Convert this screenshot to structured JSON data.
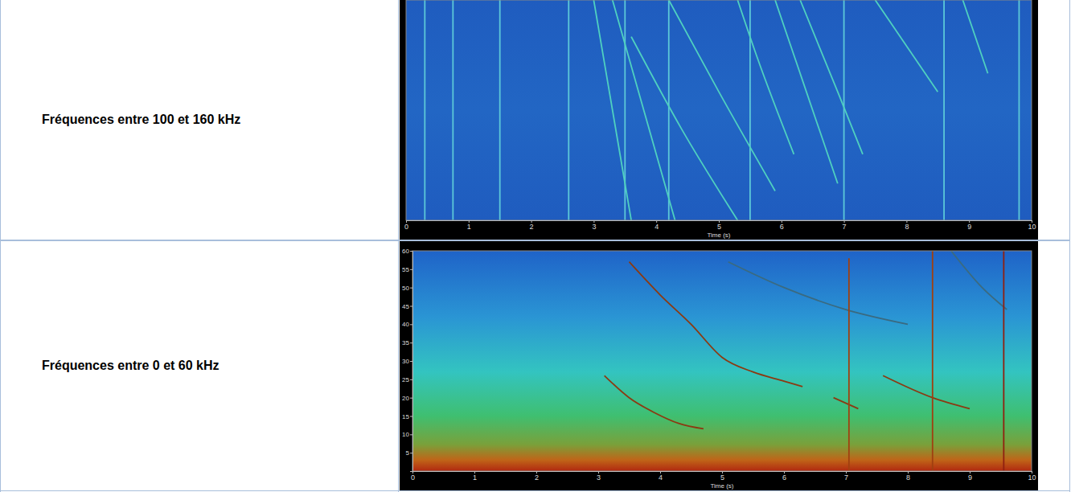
{
  "table": {
    "row_labels": [
      "Fréquences entre 100 et 160 kHz",
      "Fréquences entre 0 et 60 kHz"
    ]
  },
  "chart_data": [
    {
      "type": "spectrogram",
      "x_label": "Time (s)",
      "xlim": [
        0,
        10
      ],
      "xticks": [
        0,
        1,
        2,
        3,
        4,
        5,
        6,
        7,
        8,
        9,
        10
      ],
      "ylim": [
        100,
        160
      ],
      "tick_labels": "x",
      "series": [
        {
          "color": "#5cc8d8",
          "x": [
            0.3,
            0.3
          ],
          "values": [
            100,
            160
          ]
        },
        {
          "color": "#5cc8d8",
          "x": [
            0.75,
            0.75
          ],
          "values": [
            100,
            160
          ]
        },
        {
          "color": "#5cc8d8",
          "x": [
            1.5,
            1.5
          ],
          "values": [
            100,
            160
          ]
        },
        {
          "color": "#5cc8d8",
          "x": [
            2.6,
            2.6
          ],
          "values": [
            100,
            160
          ]
        },
        {
          "color": "#5cc8d8",
          "x": [
            3.5,
            3.5
          ],
          "values": [
            100,
            160
          ]
        },
        {
          "color": "#5cc8d8",
          "x": [
            4.2,
            4.2
          ],
          "values": [
            100,
            160
          ]
        },
        {
          "color": "#5cc8d8",
          "x": [
            5.5,
            5.5
          ],
          "values": [
            100,
            160
          ]
        },
        {
          "color": "#5cc8d8",
          "x": [
            7.0,
            7.0
          ],
          "values": [
            100,
            160
          ]
        },
        {
          "color": "#5cc8d8",
          "x": [
            8.6,
            8.6
          ],
          "values": [
            100,
            160
          ]
        },
        {
          "color": "#5cc8d8",
          "x": [
            9.8,
            9.8
          ],
          "values": [
            100,
            160
          ]
        },
        {
          "color": "#4fd0c0",
          "x": [
            3.0,
            3.3,
            3.6
          ],
          "values": [
            160,
            130,
            100
          ]
        },
        {
          "color": "#4fd0c0",
          "x": [
            3.3,
            3.8,
            4.3
          ],
          "values": [
            160,
            130,
            100
          ]
        },
        {
          "color": "#4fd0c0",
          "x": [
            3.6,
            4.4,
            5.3
          ],
          "values": [
            150,
            125,
            100
          ]
        },
        {
          "color": "#4fd0c0",
          "x": [
            4.2,
            5.0,
            5.9
          ],
          "values": [
            160,
            135,
            108
          ]
        },
        {
          "color": "#4fd0c0",
          "x": [
            5.3,
            5.6,
            6.2
          ],
          "values": [
            160,
            145,
            118
          ]
        },
        {
          "color": "#4fd0c0",
          "x": [
            5.9,
            6.3,
            6.9
          ],
          "values": [
            160,
            140,
            110
          ]
        },
        {
          "color": "#4fd0c0",
          "x": [
            6.3,
            6.9,
            7.3
          ],
          "values": [
            160,
            135,
            118
          ]
        },
        {
          "color": "#4fd0c0",
          "x": [
            7.5,
            8.5
          ],
          "values": [
            160,
            135
          ]
        },
        {
          "color": "#4fd0c0",
          "x": [
            8.9,
            9.3
          ],
          "values": [
            160,
            140
          ]
        }
      ]
    },
    {
      "type": "spectrogram",
      "x_label": "Time (s)",
      "xlim": [
        0,
        10
      ],
      "xticks": [
        0,
        1,
        2,
        3,
        4,
        5,
        6,
        7,
        8,
        9,
        10
      ],
      "ylim": [
        0,
        60
      ],
      "yticks": [
        5,
        10,
        15,
        20,
        25,
        30,
        35,
        40,
        45,
        50,
        55,
        60
      ],
      "series": [
        {
          "color": "#8b3a12",
          "x": [
            3.1,
            3.5,
            3.9,
            4.3,
            4.7
          ],
          "values": [
            26,
            20,
            16,
            13,
            11.5
          ]
        },
        {
          "color": "#8b3a12",
          "x": [
            3.5,
            4.0,
            4.5,
            5.0,
            5.5,
            6.0,
            6.3
          ],
          "values": [
            57,
            48,
            40,
            31,
            27,
            24.5,
            23
          ]
        },
        {
          "color": "#3a6a80",
          "x": [
            5.1,
            6.0,
            7.0,
            8.0
          ],
          "values": [
            57,
            50,
            44,
            40
          ]
        },
        {
          "color": "#8b3a12",
          "x": [
            6.8,
            7.2
          ],
          "values": [
            20,
            17
          ]
        },
        {
          "color": "#8b3a12",
          "x": [
            7.6,
            8.4,
            9.0
          ],
          "values": [
            26,
            20,
            17
          ]
        },
        {
          "color": "#3a6a80",
          "x": [
            8.7,
            9.2,
            9.6
          ],
          "values": [
            60,
            50,
            44
          ]
        },
        {
          "color": "#a04010",
          "x": [
            7.05,
            7.05
          ],
          "values": [
            0,
            58
          ]
        },
        {
          "color": "#a04010",
          "x": [
            8.4,
            8.4
          ],
          "values": [
            0,
            60
          ]
        },
        {
          "color": "#902010",
          "x": [
            9.55,
            9.55
          ],
          "values": [
            0,
            60
          ]
        }
      ]
    }
  ]
}
